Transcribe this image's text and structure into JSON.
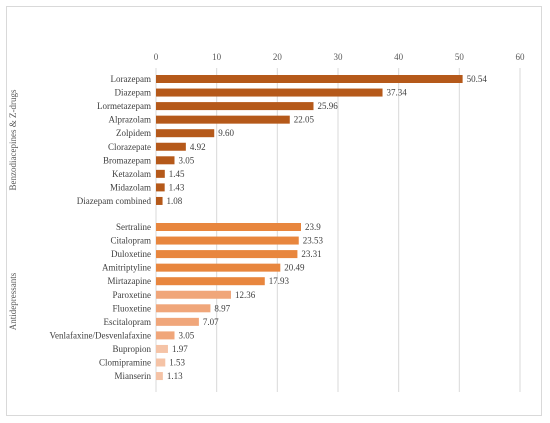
{
  "chart_data": {
    "type": "bar",
    "orientation": "horizontal",
    "title": "",
    "xlabel": "",
    "ylabel": "",
    "xlim": [
      0,
      60
    ],
    "x_ticks": [
      "0",
      "10",
      "20",
      "30",
      "40",
      "50",
      "60"
    ],
    "x_axis_position": "top",
    "grid": true,
    "legend": "none",
    "groups": [
      {
        "name": "Benzodiacepines & Z-drugs",
        "color": "#b5591a",
        "bars": [
          {
            "label": "Lorazepam",
            "value": 50.54,
            "value_label": "50.54"
          },
          {
            "label": "Diazepam",
            "value": 37.34,
            "value_label": "37.34"
          },
          {
            "label": "Lormetazepam",
            "value": 25.96,
            "value_label": "25.96"
          },
          {
            "label": "Alprazolam",
            "value": 22.05,
            "value_label": "22.05"
          },
          {
            "label": "Zolpidem",
            "value": 9.6,
            "value_label": "9.60"
          },
          {
            "label": "Clorazepate",
            "value": 4.92,
            "value_label": "4.92"
          },
          {
            "label": "Bromazepam",
            "value": 3.05,
            "value_label": "3.05"
          },
          {
            "label": "Ketazolam",
            "value": 1.45,
            "value_label": "1.45"
          },
          {
            "label": "Midazolam",
            "value": 1.43,
            "value_label": "1.43"
          },
          {
            "label": "Diazepam combined",
            "value": 1.08,
            "value_label": "1.08"
          }
        ]
      },
      {
        "name": "Antidepressants",
        "bars": [
          {
            "label": "Sertraline",
            "value": 23.9,
            "value_label": "23.9",
            "color": "#e8863e"
          },
          {
            "label": "Citalopram",
            "value": 23.53,
            "value_label": "23.53",
            "color": "#e8863e"
          },
          {
            "label": "Duloxetine",
            "value": 23.31,
            "value_label": "23.31",
            "color": "#e8863e"
          },
          {
            "label": "Amitriptyline",
            "value": 20.49,
            "value_label": "20.49",
            "color": "#e8863e"
          },
          {
            "label": "Mirtazapine",
            "value": 17.93,
            "value_label": "17.93",
            "color": "#e8863e"
          },
          {
            "label": "Paroxetine",
            "value": 12.36,
            "value_label": "12.36",
            "color": "#f0a67a"
          },
          {
            "label": "Fluoxetine",
            "value": 8.97,
            "value_label": "8.97",
            "color": "#f0a67a"
          },
          {
            "label": "Escitalopram",
            "value": 7.07,
            "value_label": "7.07",
            "color": "#f0a67a"
          },
          {
            "label": "Venlafaxine/Desvenlafaxine",
            "value": 3.05,
            "value_label": "3.05",
            "color": "#f0a67a"
          },
          {
            "label": "Bupropion",
            "value": 1.97,
            "value_label": "1.97",
            "color": "#f5c3a6"
          },
          {
            "label": "Clomipramine",
            "value": 1.53,
            "value_label": "1.53",
            "color": "#f5c3a6"
          },
          {
            "label": "Mianserin",
            "value": 1.13,
            "value_label": "1.13",
            "color": "#f5c3a6"
          }
        ]
      }
    ]
  }
}
